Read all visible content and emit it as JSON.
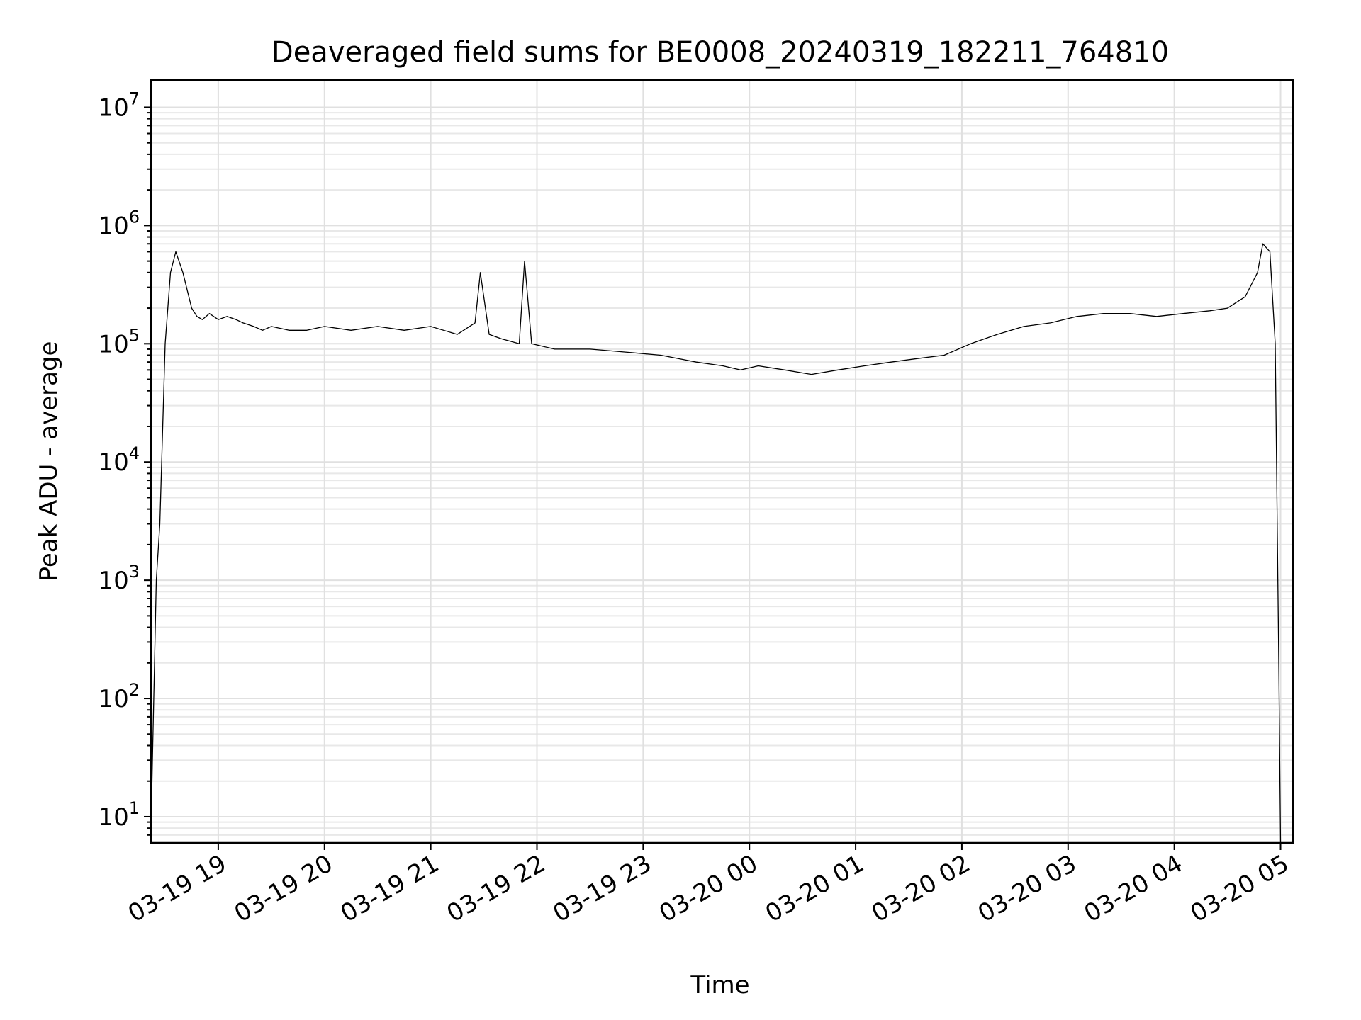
{
  "chart_data": {
    "type": "line",
    "title": "Deaveraged field sums for BE0008_20240319_182211_764810",
    "xlabel": "Time",
    "ylabel": "Peak ADU - average",
    "y_scale": "log",
    "ylim": [
      6,
      17000000
    ],
    "xlim": [
      "2024-03-19 18:22",
      "2024-03-20 05:07"
    ],
    "grid": "major and minor, light gray",
    "line_color": "#000000",
    "x_ticks": [
      {
        "label": "03-19 19",
        "time": "2024-03-19 19:00"
      },
      {
        "label": "03-19 20",
        "time": "2024-03-19 20:00"
      },
      {
        "label": "03-19 21",
        "time": "2024-03-19 21:00"
      },
      {
        "label": "03-19 22",
        "time": "2024-03-19 22:00"
      },
      {
        "label": "03-19 23",
        "time": "2024-03-19 23:00"
      },
      {
        "label": "03-20 00",
        "time": "2024-03-20 00:00"
      },
      {
        "label": "03-20 01",
        "time": "2024-03-20 01:00"
      },
      {
        "label": "03-20 02",
        "time": "2024-03-20 02:00"
      },
      {
        "label": "03-20 03",
        "time": "2024-03-20 03:00"
      },
      {
        "label": "03-20 04",
        "time": "2024-03-20 04:00"
      },
      {
        "label": "03-20 05",
        "time": "2024-03-20 05:00"
      }
    ],
    "y_ticks": [
      {
        "base": "10",
        "exp": "1",
        "value": 10
      },
      {
        "base": "10",
        "exp": "2",
        "value": 100
      },
      {
        "base": "10",
        "exp": "3",
        "value": 1000
      },
      {
        "base": "10",
        "exp": "4",
        "value": 10000
      },
      {
        "base": "10",
        "exp": "5",
        "value": 100000
      },
      {
        "base": "10",
        "exp": "6",
        "value": 1000000
      },
      {
        "base": "10",
        "exp": "7",
        "value": 10000000
      }
    ],
    "series": [
      {
        "x": [
          "2024-03-19 18:22",
          "2024-03-19 18:25",
          "2024-03-19 18:27",
          "2024-03-19 18:30",
          "2024-03-19 18:33",
          "2024-03-19 18:36",
          "2024-03-19 18:40",
          "2024-03-19 18:45",
          "2024-03-19 18:48",
          "2024-03-19 18:51",
          "2024-03-19 18:55",
          "2024-03-19 19:00",
          "2024-03-19 19:05",
          "2024-03-19 19:10",
          "2024-03-19 19:14",
          "2024-03-19 19:20",
          "2024-03-19 19:25",
          "2024-03-19 19:30",
          "2024-03-19 19:40",
          "2024-03-19 19:50",
          "2024-03-19 20:00",
          "2024-03-19 20:15",
          "2024-03-19 20:30",
          "2024-03-19 20:45",
          "2024-03-19 21:00",
          "2024-03-19 21:15",
          "2024-03-19 21:25",
          "2024-03-19 21:28",
          "2024-03-19 21:33",
          "2024-03-19 21:40",
          "2024-03-19 21:50",
          "2024-03-19 21:53",
          "2024-03-19 21:57",
          "2024-03-19 22:10",
          "2024-03-19 22:30",
          "2024-03-19 22:50",
          "2024-03-19 23:10",
          "2024-03-19 23:30",
          "2024-03-19 23:45",
          "2024-03-19 23:55",
          "2024-03-20 00:05",
          "2024-03-20 00:20",
          "2024-03-20 00:35",
          "2024-03-20 00:50",
          "2024-03-20 01:05",
          "2024-03-20 01:20",
          "2024-03-20 01:35",
          "2024-03-20 01:50",
          "2024-03-20 02:05",
          "2024-03-20 02:20",
          "2024-03-20 02:35",
          "2024-03-20 02:50",
          "2024-03-20 03:05",
          "2024-03-20 03:20",
          "2024-03-20 03:35",
          "2024-03-20 03:50",
          "2024-03-20 04:05",
          "2024-03-20 04:20",
          "2024-03-20 04:30",
          "2024-03-20 04:40",
          "2024-03-20 04:47",
          "2024-03-20 04:50",
          "2024-03-20 04:54",
          "2024-03-20 04:57",
          "2024-03-20 04:59",
          "2024-03-20 05:00"
        ],
        "y": [
          8,
          1000,
          3000,
          100000,
          400000,
          600000,
          400000,
          200000,
          170000,
          160000,
          180000,
          160000,
          170000,
          160000,
          150000,
          140000,
          130000,
          140000,
          130000,
          130000,
          140000,
          130000,
          140000,
          130000,
          140000,
          120000,
          150000,
          400000,
          120000,
          110000,
          100000,
          500000,
          100000,
          90000,
          90000,
          85000,
          80000,
          70000,
          65000,
          60000,
          65000,
          60000,
          55000,
          60000,
          65000,
          70000,
          75000,
          80000,
          100000,
          120000,
          140000,
          150000,
          170000,
          180000,
          180000,
          170000,
          180000,
          190000,
          200000,
          250000,
          400000,
          700000,
          600000,
          100000,
          200,
          6
        ]
      }
    ]
  }
}
